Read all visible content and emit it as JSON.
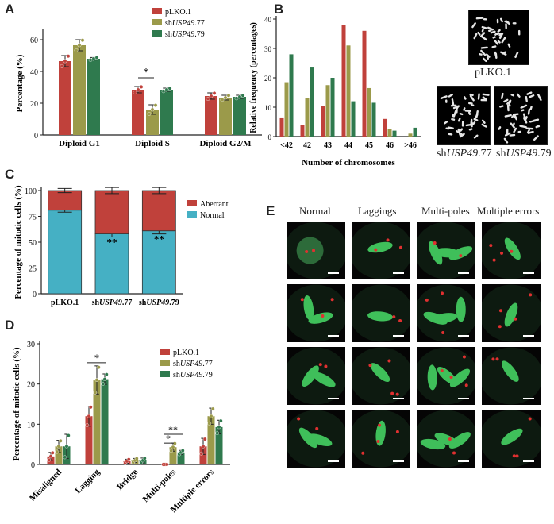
{
  "colors": {
    "red": "#C0413B",
    "olive": "#9B9A4A",
    "green": "#2F7A4E",
    "teal": "#45B0C4",
    "aberrant": "#C0413B",
    "axis": "#222222"
  },
  "panels": {
    "A": "A",
    "B": "B",
    "C": "C",
    "D": "D",
    "E": "E"
  },
  "legend_series": [
    {
      "prefix": "pLKO.1",
      "gene": "",
      "suffix": ""
    },
    {
      "prefix": "sh",
      "gene": "USP49",
      "suffix": ".77"
    },
    {
      "prefix": "sh",
      "gene": "USP49",
      "suffix": ".79"
    }
  ],
  "chart_data": [
    {
      "panel": "A",
      "type": "bar",
      "ylabel": "Percentage (%)",
      "ylim": [
        0,
        65
      ],
      "yticks": [
        0,
        20,
        40,
        60
      ],
      "categories": [
        "Diploid G1",
        "Diploid S",
        "Diploid G2/M"
      ],
      "series": [
        {
          "name": "pLKO.1",
          "values": [
            46.5,
            28.5,
            24.5
          ],
          "err": [
            3.5,
            2,
            2
          ]
        },
        {
          "name": "shUSP49.77",
          "values": [
            56.5,
            16,
            23.5
          ],
          "err": [
            3.5,
            3,
            1.5
          ]
        },
        {
          "name": "shUSP49.79",
          "values": [
            48,
            28.5,
            24
          ],
          "err": [
            0.8,
            1,
            1
          ]
        }
      ],
      "sig": [
        {
          "label": "*",
          "cat": 1
        }
      ]
    },
    {
      "panel": "B",
      "type": "bar",
      "ylabel": "Relative frequency (percentages)",
      "xlabel": "Number of chromosomes",
      "ylim": [
        0,
        40
      ],
      "yticks": [
        0,
        10,
        20,
        30,
        40
      ],
      "categories": [
        "<42",
        "42",
        "43",
        "44",
        "45",
        "46",
        ">46"
      ],
      "series": [
        {
          "name": "pLKO.1",
          "values": [
            6.5,
            4,
            10.5,
            38,
            36,
            6,
            0
          ]
        },
        {
          "name": "shUSP49.77",
          "values": [
            18.5,
            13,
            17.5,
            31,
            16.5,
            2.5,
            1
          ]
        },
        {
          "name": "shUSP49.79",
          "values": [
            28,
            23.5,
            20,
            12,
            11.5,
            2,
            3
          ]
        }
      ]
    },
    {
      "panel": "C",
      "type": "bar",
      "stacked": true,
      "ylabel": "Percentage of mitotic cells (%)",
      "ylim": [
        0,
        100
      ],
      "yticks": [
        0,
        25,
        50,
        75,
        100
      ],
      "categories": [
        "pLKO.1",
        "shUSP49.77",
        "shUSP49.79"
      ],
      "series": [
        {
          "name": "Normal",
          "values": [
            81,
            58,
            61
          ],
          "err": [
            2,
            3,
            3
          ]
        },
        {
          "name": "Aberrant",
          "values": [
            19,
            42,
            39
          ],
          "err": [
            2,
            3,
            3
          ]
        }
      ],
      "sig": [
        "",
        "**",
        "**"
      ]
    },
    {
      "panel": "D",
      "type": "bar",
      "ylabel": "Percentage of mitotic cells (%)",
      "ylim": [
        0,
        30
      ],
      "yticks": [
        0,
        10,
        20,
        30
      ],
      "categories": [
        "Misaligned",
        "Lagging",
        "Bridge",
        "Multi-poles",
        "Multiple errors"
      ],
      "series": [
        {
          "name": "pLKO.1",
          "values": [
            2,
            12,
            0.8,
            0,
            4.5
          ],
          "err": [
            1,
            2.5,
            0.5,
            0,
            2
          ]
        },
        {
          "name": "shUSP49.77",
          "values": [
            4.5,
            21,
            1,
            4.3,
            12
          ],
          "err": [
            1.5,
            3.5,
            0.5,
            1,
            2
          ]
        },
        {
          "name": "shUSP49.79",
          "values": [
            4.5,
            21.2,
            1,
            3,
            9.3
          ],
          "err": [
            3,
            1.3,
            0.6,
            0.5,
            1.7
          ]
        }
      ],
      "sig": [
        {
          "label": "*",
          "cat": 1
        },
        {
          "label": "**",
          "cat": 3
        },
        {
          "label": "*",
          "cat": 3
        }
      ]
    }
  ],
  "karyotypes": {
    "top": {
      "label": "pLKO.1"
    },
    "left": {
      "prefix": "sh",
      "gene": "USP49",
      "suffix": ".77"
    },
    "right": {
      "prefix": "sh",
      "gene": "USP49",
      "suffix": ".79"
    }
  },
  "panelE": {
    "columns": [
      "Normal",
      "Laggings",
      "Multi-poles",
      "Multiple errors"
    ]
  }
}
